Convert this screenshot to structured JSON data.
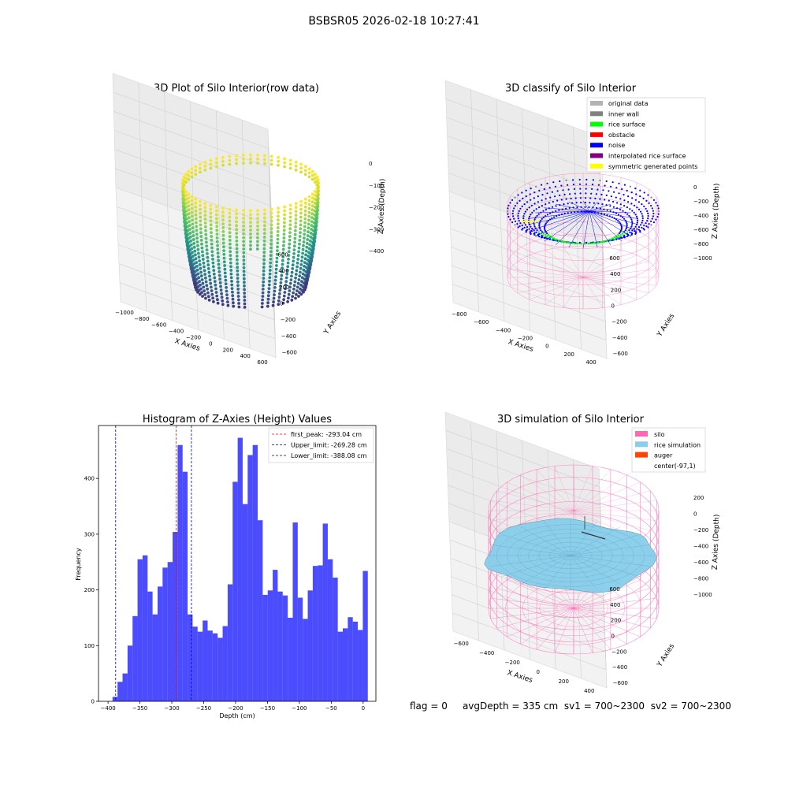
{
  "figure": {
    "suptitle": "BSBSR05 2026-02-18 10:27:41",
    "info_line": {
      "flag": "flag = 0",
      "avg_depth": "avgDepth = 335 cm",
      "sv1": "sv1 = 700~2300",
      "sv2": "sv2 = 700~2300"
    }
  },
  "chart_data": [
    {
      "type": "scatter",
      "projection": "3d",
      "title": "3D Plot of Silo Interior(row data)",
      "xlabel": "X Axies",
      "ylabel": "Y Axies",
      "zlabel": "Z Axies (Depth)",
      "x_ticks": [
        "−1000",
        "−800",
        "−600",
        "−400",
        "−200",
        "0",
        "200",
        "400",
        "600"
      ],
      "y_ticks": [
        "−600",
        "−400",
        "−200",
        "0",
        "200",
        "400",
        "600"
      ],
      "z_ticks": [
        "0",
        "−100",
        "−200",
        "−300",
        "−400"
      ],
      "xlim": [
        -1000,
        600
      ],
      "ylim": [
        -650,
        650
      ],
      "zlim": [
        -480,
        20
      ],
      "colormap": "viridis",
      "grid": true
    },
    {
      "type": "scatter",
      "projection": "3d",
      "title": "3D classify of Silo Interior",
      "xlabel": "X Axies",
      "ylabel": "Y Axies",
      "zlabel": "Z Axies (Depth)",
      "x_ticks": [
        "−800",
        "−600",
        "−400",
        "−200",
        "0",
        "200",
        "400"
      ],
      "y_ticks": [
        "−600",
        "−400",
        "−200",
        "0",
        "200",
        "400",
        "600"
      ],
      "z_ticks": [
        "0",
        "−200",
        "−400",
        "−600",
        "−800",
        "−1000"
      ],
      "grid": true,
      "legend_position": "top-right",
      "legend": [
        {
          "label": "original data",
          "color": "#b3b3b3"
        },
        {
          "label": "inner wall",
          "color": "#808080"
        },
        {
          "label": "rice surface",
          "color": "#00ff00"
        },
        {
          "label": "obstacle",
          "color": "#ff0000"
        },
        {
          "label": "noise",
          "color": "#0000ff"
        },
        {
          "label": "interpolated rice surface",
          "color": "#800080"
        },
        {
          "label": "symmetric generated points",
          "color": "#ffff00"
        }
      ],
      "wireframe_color": "#ff69b4"
    },
    {
      "type": "bar",
      "title": "Histogram of Z-Axies (Height) Values",
      "xlabel": "Depth (cm)",
      "ylabel": "Frequency",
      "xlim": [
        -415,
        20
      ],
      "ylim": [
        0,
        495
      ],
      "x_ticks": [
        -400,
        -350,
        -300,
        -250,
        -200,
        -150,
        -100,
        -50,
        0
      ],
      "x_tick_labels": [
        "−400",
        "−350",
        "−300",
        "−250",
        "−200",
        "−150",
        "−100",
        "−50",
        "0"
      ],
      "y_ticks": [
        0,
        100,
        200,
        300,
        400
      ],
      "bar_color": "#0000ff",
      "bar_opacity": 0.7,
      "bin_start": -393,
      "bin_width": 7.85,
      "values": [
        8,
        35,
        50,
        100,
        153,
        255,
        262,
        197,
        156,
        206,
        240,
        250,
        304,
        460,
        412,
        156,
        134,
        125,
        145,
        127,
        122,
        114,
        135,
        210,
        394,
        473,
        354,
        442,
        460,
        325,
        191,
        199,
        236,
        197,
        190,
        150,
        321,
        186,
        148,
        199,
        243,
        244,
        319,
        255,
        222,
        125,
        131,
        151,
        143,
        128,
        234
      ],
      "vlines": [
        {
          "x": -293.04,
          "color": "#ff0000",
          "label": "first_peak: -293.04 cm"
        },
        {
          "x": -269.28,
          "color": "#0000aa",
          "label": "Upper_limit: -269.28 cm"
        },
        {
          "x": -388.08,
          "color": "#0000aa",
          "label": "Lower_limit: -388.08 cm"
        }
      ],
      "legend_position": "top-right"
    },
    {
      "type": "surface",
      "projection": "3d",
      "title": "3D simulation of Silo Interior",
      "xlabel": "X Axies",
      "ylabel": "Y Axies",
      "zlabel": "Z Axies (Depth)",
      "x_ticks": [
        "−600",
        "−400",
        "−200",
        "0",
        "200",
        "400"
      ],
      "y_ticks": [
        "−600",
        "−400",
        "−200",
        "0",
        "200",
        "400",
        "600"
      ],
      "z_ticks": [
        "200",
        "0",
        "−200",
        "−400",
        "−600",
        "−800",
        "−1000"
      ],
      "grid": true,
      "legend_position": "top-right",
      "legend": [
        {
          "label": "silo",
          "color": "#ff69b4"
        },
        {
          "label": "rice simulation",
          "color": "#87ceeb"
        },
        {
          "label": "auger",
          "color": "#ff4500"
        },
        {
          "label": "center(-97,1)",
          "color": ""
        }
      ]
    }
  ]
}
